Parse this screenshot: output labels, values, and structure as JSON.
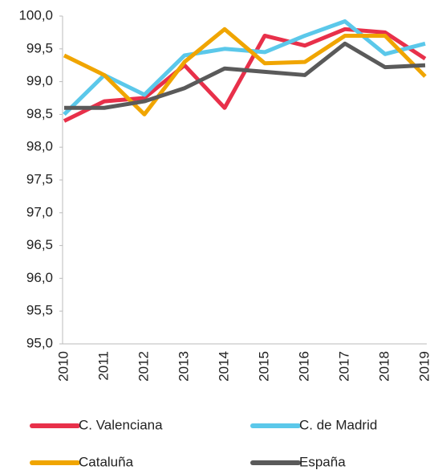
{
  "chart_data": {
    "type": "line",
    "categories": [
      "2010",
      "2011",
      "2012",
      "2013",
      "2014",
      "2015",
      "2016",
      "2017",
      "2018",
      "2019"
    ],
    "series": [
      {
        "name": "C. Valenciana",
        "color": "#e8304a",
        "values": [
          98.4,
          98.7,
          98.75,
          99.25,
          98.6,
          99.7,
          99.55,
          99.8,
          99.75,
          99.35
        ]
      },
      {
        "name": "C. de Madrid",
        "color": "#5bc8ea",
        "values": [
          98.5,
          99.1,
          98.8,
          99.4,
          99.5,
          99.45,
          99.7,
          99.92,
          99.42,
          99.58
        ]
      },
      {
        "name": "Cataluña",
        "color": "#f0a500",
        "values": [
          99.4,
          99.1,
          98.5,
          99.3,
          99.8,
          99.28,
          99.3,
          99.7,
          99.7,
          99.08
        ]
      },
      {
        "name": "España",
        "color": "#5a5a5a",
        "values": [
          98.6,
          98.6,
          98.7,
          98.9,
          99.2,
          99.15,
          99.1,
          99.58,
          99.22,
          99.25
        ]
      }
    ],
    "ylim": [
      95,
      100
    ],
    "yticks": [
      {
        "value": 95,
        "label": "95,0"
      },
      {
        "value": 95.5,
        "label": "95,5"
      },
      {
        "value": 96,
        "label": "96,0"
      },
      {
        "value": 96.5,
        "label": "96,5"
      },
      {
        "value": 97,
        "label": "97,0"
      },
      {
        "value": 97.5,
        "label": "97,5"
      },
      {
        "value": 98,
        "label": "98,0"
      },
      {
        "value": 98.5,
        "label": "98,5"
      },
      {
        "value": 99,
        "label": "99,0"
      },
      {
        "value": 99.5,
        "label": "99,5"
      },
      {
        "value": 100,
        "label": "100,0"
      }
    ],
    "grid": false
  }
}
